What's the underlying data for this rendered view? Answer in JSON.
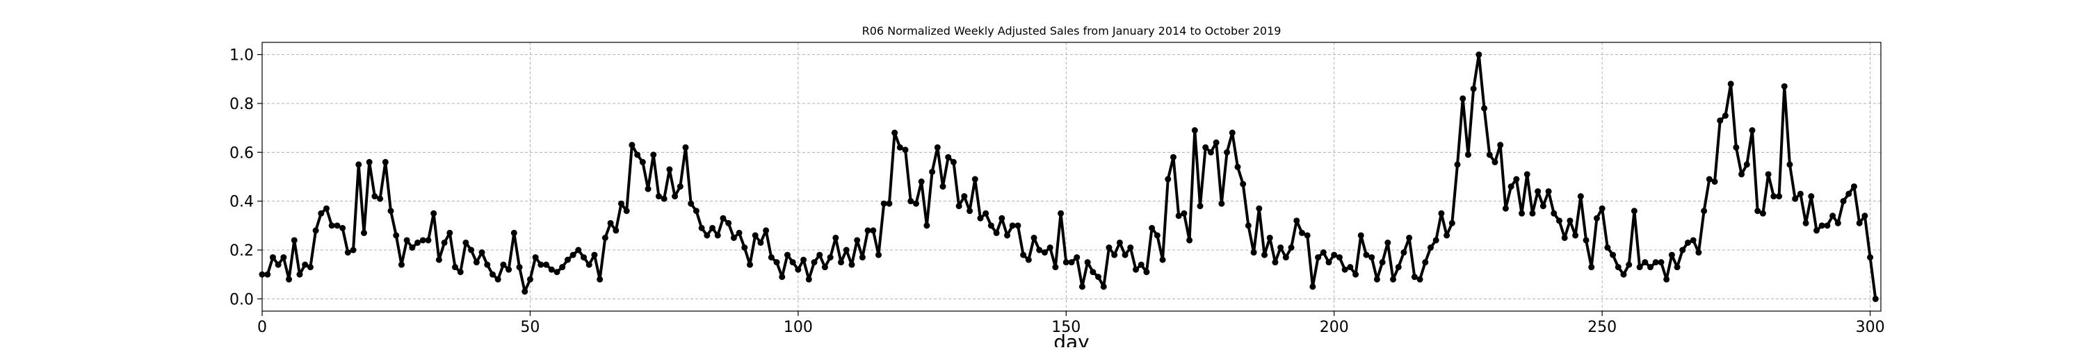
{
  "chart_data": {
    "type": "line",
    "title": "R06 Normalized Weekly Adjusted Sales from January 2014 to October 2019",
    "xlabel": "day",
    "ylabel": "",
    "xlim": [
      0,
      302
    ],
    "ylim": [
      -0.05,
      1.05
    ],
    "x_ticks": [
      0,
      50,
      100,
      150,
      200,
      250,
      300
    ],
    "y_ticks": [
      0.0,
      0.2,
      0.4,
      0.6,
      0.8,
      1.0
    ],
    "x_tick_labels": [
      "0",
      "50",
      "100",
      "150",
      "200",
      "250",
      "300"
    ],
    "y_tick_labels": [
      "0.0",
      "0.2",
      "0.4",
      "0.6",
      "0.8",
      "1.0"
    ],
    "grid": true,
    "grid_style": "dashed",
    "legend": false,
    "line_color": "#000000",
    "marker": "circle",
    "series": [
      {
        "values": [
          0.1,
          0.1,
          0.17,
          0.14,
          0.17,
          0.08,
          0.24,
          0.1,
          0.14,
          0.13,
          0.28,
          0.35,
          0.37,
          0.3,
          0.3,
          0.29,
          0.19,
          0.2,
          0.55,
          0.27,
          0.56,
          0.42,
          0.41,
          0.56,
          0.36,
          0.26,
          0.14,
          0.24,
          0.21,
          0.23,
          0.24,
          0.24,
          0.35,
          0.16,
          0.23,
          0.27,
          0.13,
          0.11,
          0.23,
          0.2,
          0.15,
          0.19,
          0.14,
          0.1,
          0.08,
          0.14,
          0.12,
          0.27,
          0.13,
          0.03,
          0.08,
          0.17,
          0.14,
          0.14,
          0.12,
          0.11,
          0.13,
          0.16,
          0.18,
          0.2,
          0.17,
          0.14,
          0.18,
          0.08,
          0.25,
          0.31,
          0.28,
          0.39,
          0.36,
          0.63,
          0.59,
          0.56,
          0.45,
          0.59,
          0.42,
          0.41,
          0.53,
          0.42,
          0.46,
          0.62,
          0.39,
          0.36,
          0.29,
          0.26,
          0.29,
          0.26,
          0.33,
          0.31,
          0.25,
          0.27,
          0.21,
          0.14,
          0.26,
          0.23,
          0.28,
          0.17,
          0.15,
          0.09,
          0.18,
          0.15,
          0.12,
          0.16,
          0.08,
          0.15,
          0.18,
          0.13,
          0.17,
          0.25,
          0.15,
          0.2,
          0.14,
          0.24,
          0.17,
          0.28,
          0.28,
          0.18,
          0.39,
          0.39,
          0.68,
          0.62,
          0.61,
          0.4,
          0.39,
          0.48,
          0.3,
          0.52,
          0.62,
          0.46,
          0.58,
          0.56,
          0.38,
          0.42,
          0.36,
          0.49,
          0.33,
          0.35,
          0.3,
          0.27,
          0.33,
          0.26,
          0.3,
          0.3,
          0.18,
          0.16,
          0.25,
          0.2,
          0.19,
          0.21,
          0.13,
          0.35,
          0.15,
          0.15,
          0.17,
          0.05,
          0.15,
          0.11,
          0.09,
          0.05,
          0.21,
          0.18,
          0.23,
          0.18,
          0.21,
          0.12,
          0.14,
          0.11,
          0.29,
          0.26,
          0.16,
          0.49,
          0.58,
          0.34,
          0.35,
          0.24,
          0.69,
          0.38,
          0.62,
          0.6,
          0.64,
          0.39,
          0.6,
          0.68,
          0.54,
          0.47,
          0.3,
          0.19,
          0.37,
          0.18,
          0.25,
          0.15,
          0.21,
          0.17,
          0.21,
          0.32,
          0.27,
          0.26,
          0.05,
          0.17,
          0.19,
          0.15,
          0.18,
          0.17,
          0.12,
          0.13,
          0.1,
          0.26,
          0.18,
          0.17,
          0.08,
          0.15,
          0.23,
          0.08,
          0.13,
          0.19,
          0.25,
          0.09,
          0.08,
          0.15,
          0.21,
          0.24,
          0.35,
          0.26,
          0.31,
          0.55,
          0.82,
          0.59,
          0.86,
          1.0,
          0.78,
          0.59,
          0.56,
          0.63,
          0.37,
          0.46,
          0.49,
          0.35,
          0.51,
          0.35,
          0.44,
          0.38,
          0.44,
          0.35,
          0.32,
          0.25,
          0.32,
          0.26,
          0.42,
          0.24,
          0.13,
          0.33,
          0.37,
          0.21,
          0.18,
          0.13,
          0.1,
          0.14,
          0.36,
          0.13,
          0.15,
          0.13,
          0.15,
          0.15,
          0.08,
          0.18,
          0.13,
          0.2,
          0.23,
          0.24,
          0.19,
          0.36,
          0.49,
          0.48,
          0.73,
          0.75,
          0.88,
          0.62,
          0.51,
          0.55,
          0.69,
          0.36,
          0.35,
          0.51,
          0.42,
          0.42,
          0.87,
          0.55,
          0.41,
          0.43,
          0.31,
          0.42,
          0.28,
          0.3,
          0.3,
          0.34,
          0.31,
          0.4,
          0.43,
          0.46,
          0.31,
          0.34,
          0.17,
          0.0
        ]
      }
    ]
  }
}
